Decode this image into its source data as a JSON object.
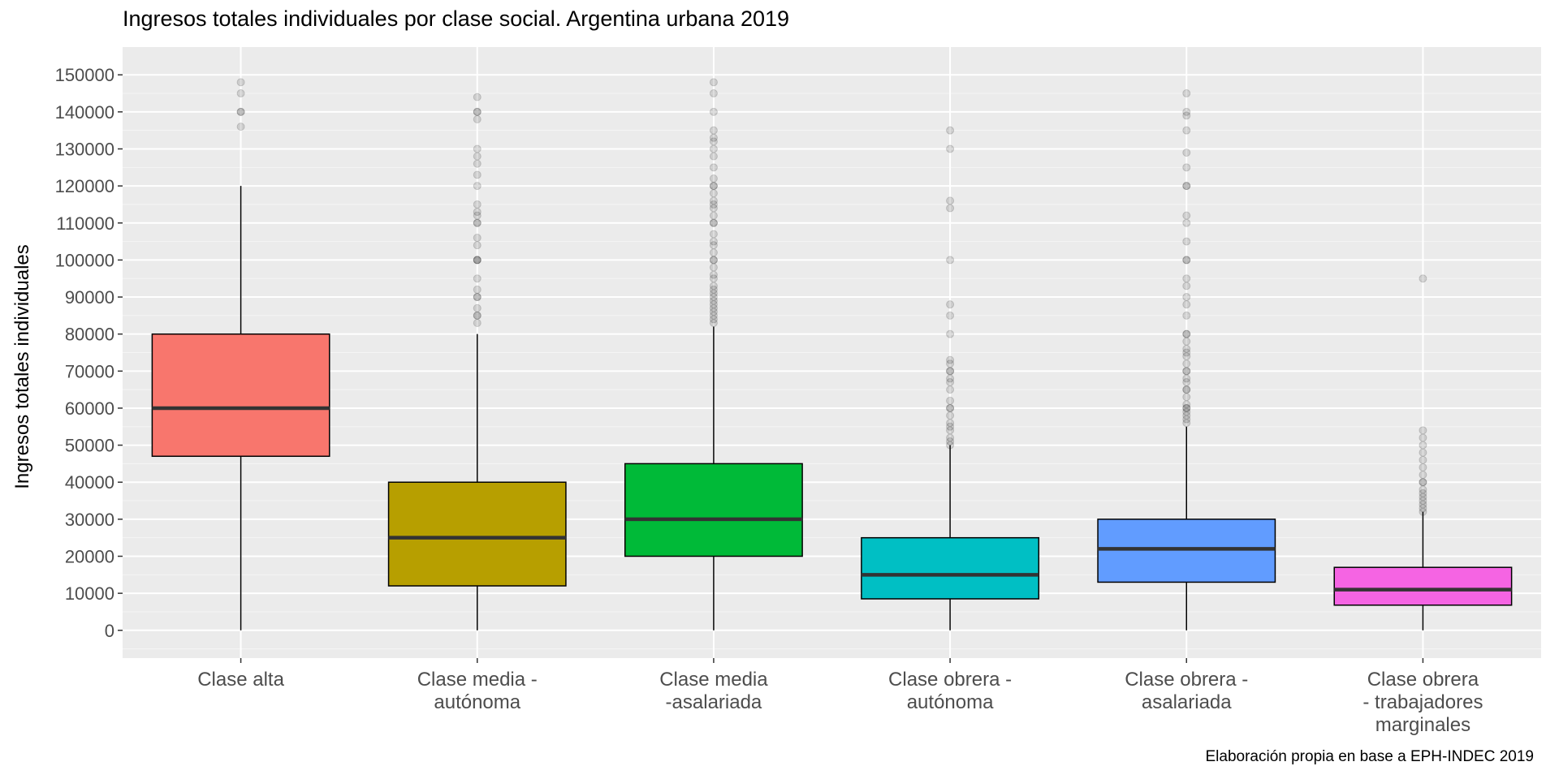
{
  "chart_data": {
    "type": "boxplot",
    "title": "Ingresos totales individuales por clase social. Argentina urbana 2019",
    "xlabel": "",
    "ylabel": "Ingresos totales individuales",
    "caption": "Elaboración propia en base a EPH-INDEC 2019",
    "ylim": [
      -7500,
      157500
    ],
    "yticks": [
      0,
      10000,
      20000,
      30000,
      40000,
      50000,
      60000,
      70000,
      80000,
      90000,
      100000,
      110000,
      120000,
      130000,
      140000,
      150000
    ],
    "grid": true,
    "legend": "none",
    "categories": [
      "Clase alta",
      "Clase media - autónoma",
      "Clase media -asalariada",
      "Clase obrera - autónoma",
      "Clase obrera - asalariada",
      "Clase obrera - trabajadores marginales"
    ],
    "category_lines": [
      [
        "Clase alta"
      ],
      [
        "Clase media -",
        "autónoma"
      ],
      [
        "Clase media",
        "-asalariada"
      ],
      [
        "Clase obrera -",
        "autónoma"
      ],
      [
        "Clase obrera -",
        "asalariada"
      ],
      [
        "Clase obrera",
        "- trabajadores",
        "marginales"
      ]
    ],
    "series": [
      {
        "q1": 47000,
        "median": 60000,
        "q3": 80000,
        "whisker_low": 0,
        "whisker_high": 120000,
        "color": "#F8766D",
        "outliers": [
          136000,
          140000,
          140000,
          145000,
          148000
        ]
      },
      {
        "q1": 12000,
        "median": 25000,
        "q3": 40000,
        "whisker_low": 0,
        "whisker_high": 80000,
        "color": "#B79F00",
        "outliers": [
          83000,
          85000,
          85000,
          87000,
          90000,
          90000,
          92000,
          95000,
          100000,
          100000,
          100000,
          104000,
          106000,
          110000,
          110000,
          112000,
          113000,
          115000,
          120000,
          123000,
          126000,
          128000,
          130000,
          138000,
          140000,
          140000,
          144000
        ]
      },
      {
        "q1": 20000,
        "median": 30000,
        "q3": 45000,
        "whisker_low": 0,
        "whisker_high": 82000,
        "color": "#00BA38",
        "outliers": [
          83000,
          84000,
          85000,
          86000,
          87000,
          88000,
          89000,
          90000,
          91000,
          92000,
          93000,
          95000,
          96000,
          98000,
          100000,
          100000,
          102000,
          104000,
          105000,
          107000,
          110000,
          110000,
          112000,
          114000,
          115000,
          116000,
          118000,
          120000,
          120000,
          122000,
          125000,
          128000,
          130000,
          132000,
          133000,
          135000,
          140000,
          145000,
          148000
        ]
      },
      {
        "q1": 8500,
        "median": 15000,
        "q3": 25000,
        "whisker_low": 0,
        "whisker_high": 50000,
        "color": "#00BFC4",
        "outliers": [
          50000,
          51000,
          52000,
          54000,
          55000,
          56000,
          58000,
          60000,
          60000,
          62000,
          65000,
          67000,
          68000,
          70000,
          70000,
          72000,
          73000,
          80000,
          85000,
          88000,
          100000,
          114000,
          116000,
          130000,
          135000
        ]
      },
      {
        "q1": 13000,
        "median": 22000,
        "q3": 30000,
        "whisker_low": 0,
        "whisker_high": 55000,
        "color": "#619CFF",
        "outliers": [
          56000,
          57000,
          58000,
          59000,
          60000,
          60000,
          61000,
          63000,
          65000,
          65000,
          67000,
          68000,
          70000,
          70000,
          72000,
          74000,
          75000,
          76000,
          78000,
          80000,
          80000,
          85000,
          88000,
          90000,
          93000,
          95000,
          100000,
          100000,
          105000,
          110000,
          112000,
          120000,
          120000,
          125000,
          129000,
          135000,
          139000,
          140000,
          145000
        ]
      },
      {
        "q1": 6800,
        "median": 11000,
        "q3": 17000,
        "whisker_low": 0,
        "whisker_high": 32000,
        "color": "#F564E3",
        "outliers": [
          32000,
          33000,
          34000,
          35000,
          36000,
          37000,
          38000,
          40000,
          40000,
          42000,
          44000,
          46000,
          48000,
          50000,
          52000,
          54000,
          95000
        ]
      }
    ]
  }
}
